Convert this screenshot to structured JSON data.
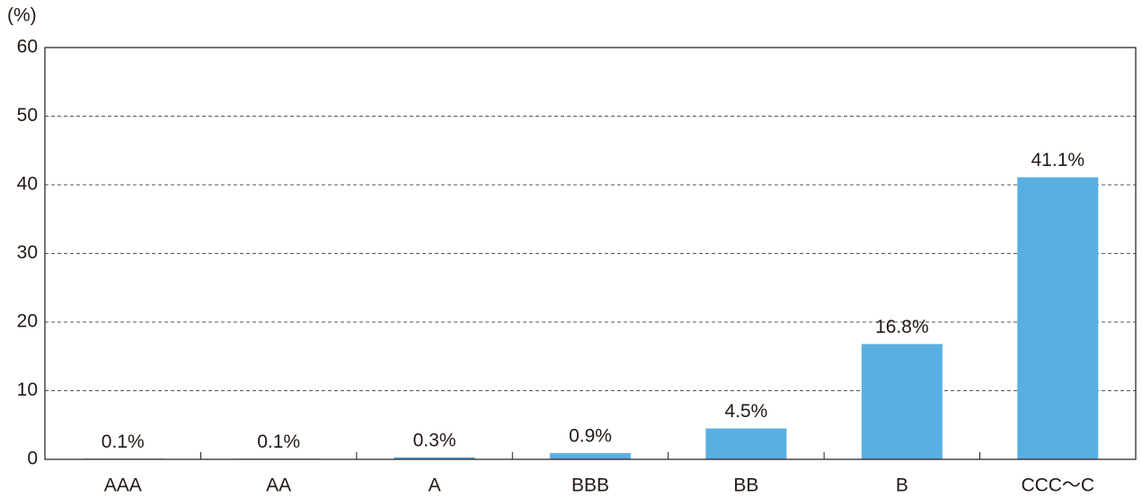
{
  "chart_data": {
    "type": "bar",
    "y_axis_label": "(%)",
    "categories": [
      "AAA",
      "AA",
      "A",
      "BBB",
      "BB",
      "B",
      "CCC～C"
    ],
    "values": [
      0.1,
      0.1,
      0.3,
      0.9,
      4.5,
      16.8,
      41.1
    ],
    "value_labels": [
      "0.1%",
      "0.1%",
      "0.3%",
      "0.9%",
      "4.5%",
      "16.8%",
      "41.1%"
    ],
    "color": "#5aafe2",
    "ylim": [
      0,
      60
    ],
    "yticks": [
      0,
      10,
      20,
      30,
      40,
      50,
      60
    ],
    "grid": true
  }
}
